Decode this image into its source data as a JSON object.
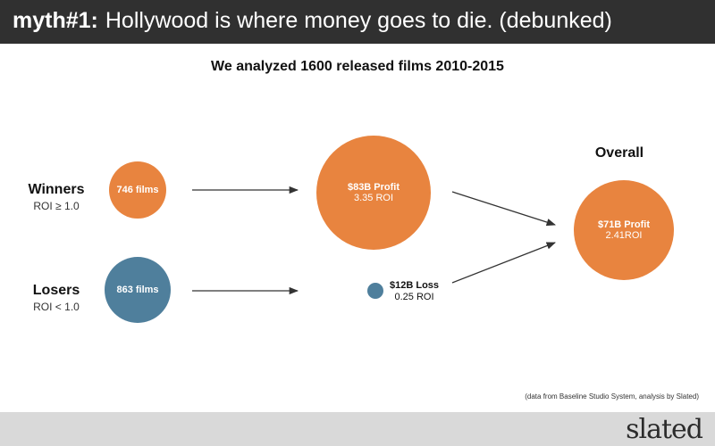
{
  "header": {
    "lead": "myth#1:",
    "title": "Hollywood is where money goes to die. (debunked)"
  },
  "subtitle": "We analyzed 1600 released films 2010-2015",
  "winners": {
    "name": "Winners",
    "criterion": "ROI ≥ 1.0",
    "count_label": "746 films",
    "profit_label": "$83B Profit",
    "roi_label": "3.35 ROI"
  },
  "losers": {
    "name": "Losers",
    "criterion": "ROI < 1.0",
    "count_label": "863 films",
    "loss_label": "$12B Loss",
    "roi_label": "0.25 ROI"
  },
  "overall": {
    "name": "Overall",
    "profit_label": "$71B Profit",
    "roi_label": "2.41ROI"
  },
  "source": "(data from Baseline Studio System, analysis by Slated)",
  "logo": "slated",
  "colors": {
    "orange": "#e8843f",
    "blue": "#4f7f9c"
  }
}
